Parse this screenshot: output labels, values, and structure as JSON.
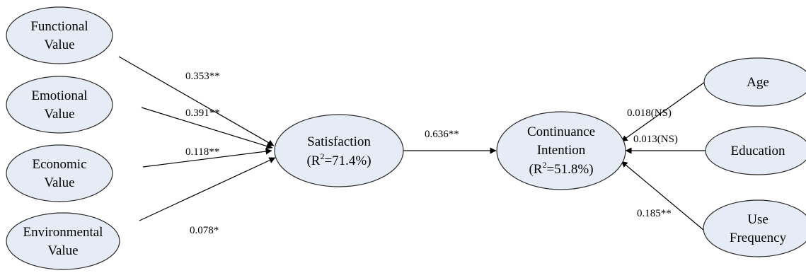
{
  "nodes": {
    "functional": {
      "line1": "Functional",
      "line2": "Value"
    },
    "emotional": {
      "line1": "Emotional",
      "line2": "Value"
    },
    "economic": {
      "line1": "Economic",
      "line2": "Value"
    },
    "environmental": {
      "line1": "Environmental",
      "line2": "Value"
    },
    "satisfaction": {
      "line1": "Satisfaction",
      "r2_prefix": "(R",
      "r2_sup": "2",
      "r2_value": "=71.4%)"
    },
    "continuance": {
      "line1": "Continuance",
      "line2": "Intention",
      "r2_prefix": "(R",
      "r2_sup": "2",
      "r2_value": "=51.8%)"
    },
    "age": {
      "line1": "Age"
    },
    "education": {
      "line1": "Education"
    },
    "use_frequency": {
      "line1": "Use",
      "line2": "Frequency"
    }
  },
  "edges": {
    "functional_to_satisfaction": "0.353**",
    "emotional_to_satisfaction": "0.391**",
    "economic_to_satisfaction": "0.118**",
    "environmental_to_satisfaction": "0.078*",
    "satisfaction_to_continuance": "0.636**",
    "age_to_continuance": "0.018(NS)",
    "education_to_continuance": "0.013(NS)",
    "use_frequency_to_continuance": "0.185**"
  }
}
